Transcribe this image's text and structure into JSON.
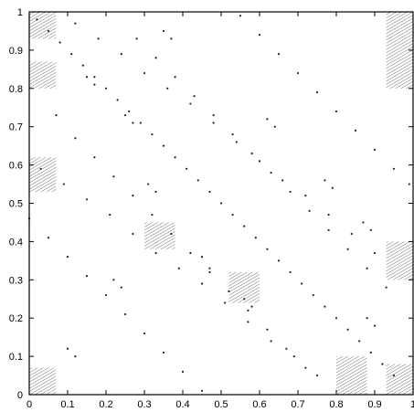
{
  "chart_data": {
    "type": "scatter",
    "title": "",
    "xlabel": "",
    "ylabel": "",
    "xlim": [
      0,
      1
    ],
    "ylim": [
      0,
      1
    ],
    "grid": false,
    "legend": "none",
    "x_ticks": [
      "0",
      "0.1",
      "0.2",
      "0.3",
      "0.4",
      "0.5",
      "0.6",
      "0.7",
      "0.8",
      "0.9",
      "1"
    ],
    "y_ticks": [
      "0",
      "0.1",
      "0.2",
      "0.3",
      "0.4",
      "0.5",
      "0.6",
      "0.7",
      "0.8",
      "0.9",
      "1"
    ],
    "series": [
      {
        "color": "#222222",
        "points": [
          [
            0.02,
            0.98
          ],
          [
            0.05,
            0.95
          ],
          [
            0.08,
            0.92
          ],
          [
            0.11,
            0.89
          ],
          [
            0.14,
            0.86
          ],
          [
            0.17,
            0.83
          ],
          [
            0.2,
            0.8
          ],
          [
            0.23,
            0.77
          ],
          [
            0.26,
            0.74
          ],
          [
            0.29,
            0.71
          ],
          [
            0.32,
            0.68
          ],
          [
            0.35,
            0.65
          ],
          [
            0.38,
            0.62
          ],
          [
            0.41,
            0.59
          ],
          [
            0.44,
            0.56
          ],
          [
            0.47,
            0.53
          ],
          [
            0.5,
            0.5
          ],
          [
            0.53,
            0.47
          ],
          [
            0.56,
            0.44
          ],
          [
            0.59,
            0.41
          ],
          [
            0.62,
            0.38
          ],
          [
            0.65,
            0.35
          ],
          [
            0.68,
            0.32
          ],
          [
            0.71,
            0.29
          ],
          [
            0.74,
            0.26
          ],
          [
            0.77,
            0.23
          ],
          [
            0.8,
            0.2
          ],
          [
            0.83,
            0.17
          ],
          [
            0.86,
            0.14
          ],
          [
            0.89,
            0.11
          ],
          [
            0.92,
            0.08
          ],
          [
            0.95,
            0.05
          ],
          [
            0.07,
            0.73
          ],
          [
            0.12,
            0.67
          ],
          [
            0.17,
            0.62
          ],
          [
            0.22,
            0.57
          ],
          [
            0.27,
            0.52
          ],
          [
            0.32,
            0.47
          ],
          [
            0.37,
            0.42
          ],
          [
            0.42,
            0.37
          ],
          [
            0.47,
            0.32
          ],
          [
            0.52,
            0.27
          ],
          [
            0.57,
            0.22
          ],
          [
            0.62,
            0.17
          ],
          [
            0.67,
            0.12
          ],
          [
            0.72,
            0.07
          ],
          [
            0.28,
            0.93
          ],
          [
            0.33,
            0.88
          ],
          [
            0.38,
            0.83
          ],
          [
            0.43,
            0.78
          ],
          [
            0.48,
            0.73
          ],
          [
            0.53,
            0.68
          ],
          [
            0.58,
            0.63
          ],
          [
            0.63,
            0.58
          ],
          [
            0.68,
            0.53
          ],
          [
            0.73,
            0.48
          ],
          [
            0.78,
            0.43
          ],
          [
            0.83,
            0.38
          ],
          [
            0.88,
            0.33
          ],
          [
            0.93,
            0.28
          ],
          [
            0.0,
            0.46
          ],
          [
            0.05,
            0.41
          ],
          [
            0.1,
            0.36
          ],
          [
            0.15,
            0.31
          ],
          [
            0.2,
            0.26
          ],
          [
            0.25,
            0.21
          ],
          [
            0.3,
            0.16
          ],
          [
            0.35,
            0.11
          ],
          [
            0.4,
            0.06
          ],
          [
            0.45,
            0.01
          ],
          [
            0.55,
            0.99
          ],
          [
            0.6,
            0.94
          ],
          [
            0.65,
            0.89
          ],
          [
            0.7,
            0.84
          ],
          [
            0.75,
            0.79
          ],
          [
            0.8,
            0.74
          ],
          [
            0.85,
            0.69
          ],
          [
            0.9,
            0.64
          ],
          [
            0.95,
            0.59
          ],
          [
            0.99,
            0.55
          ],
          [
            0.12,
            0.97
          ],
          [
            0.18,
            0.93
          ],
          [
            0.24,
            0.89
          ],
          [
            0.3,
            0.84
          ],
          [
            0.36,
            0.8
          ],
          [
            0.42,
            0.76
          ],
          [
            0.48,
            0.71
          ],
          [
            0.54,
            0.66
          ],
          [
            0.6,
            0.61
          ],
          [
            0.66,
            0.56
          ],
          [
            0.72,
            0.52
          ],
          [
            0.78,
            0.47
          ],
          [
            0.84,
            0.42
          ],
          [
            0.9,
            0.37
          ],
          [
            0.03,
            0.59
          ],
          [
            0.09,
            0.55
          ],
          [
            0.15,
            0.51
          ],
          [
            0.21,
            0.47
          ],
          [
            0.27,
            0.42
          ],
          [
            0.33,
            0.37
          ],
          [
            0.39,
            0.33
          ],
          [
            0.45,
            0.29
          ],
          [
            0.51,
            0.24
          ],
          [
            0.57,
            0.19
          ],
          [
            0.63,
            0.14
          ],
          [
            0.69,
            0.1
          ],
          [
            0.75,
            0.05
          ],
          [
            0.22,
            0.3
          ],
          [
            0.24,
            0.28
          ],
          [
            0.31,
            0.55
          ],
          [
            0.33,
            0.53
          ],
          [
            0.45,
            0.36
          ],
          [
            0.47,
            0.33
          ],
          [
            0.56,
            0.25
          ],
          [
            0.58,
            0.23
          ],
          [
            0.62,
            0.72
          ],
          [
            0.64,
            0.7
          ],
          [
            0.77,
            0.56
          ],
          [
            0.79,
            0.54
          ],
          [
            0.15,
            0.83
          ],
          [
            0.17,
            0.81
          ],
          [
            0.87,
            0.45
          ],
          [
            0.89,
            0.43
          ],
          [
            0.1,
            0.12
          ],
          [
            0.12,
            0.1
          ],
          [
            0.9,
            0.18
          ],
          [
            0.88,
            0.2
          ],
          [
            0.35,
            0.95
          ],
          [
            0.37,
            0.93
          ],
          [
            0.25,
            0.73
          ],
          [
            0.27,
            0.71
          ]
        ]
      }
    ],
    "shaded_regions": [
      {
        "x": [
          0.0,
          0.07
        ],
        "y": [
          0.93,
          1.0
        ]
      },
      {
        "x": [
          0.0,
          0.07
        ],
        "y": [
          0.0,
          0.07
        ]
      },
      {
        "x": [
          0.8,
          0.88
        ],
        "y": [
          0.0,
          0.1
        ]
      },
      {
        "x": [
          0.93,
          1.0
        ],
        "y": [
          0.8,
          1.0
        ]
      },
      {
        "x": [
          0.0,
          0.07
        ],
        "y": [
          0.8,
          0.87
        ]
      },
      {
        "x": [
          0.0,
          0.07
        ],
        "y": [
          0.53,
          0.62
        ]
      },
      {
        "x": [
          0.93,
          1.0
        ],
        "y": [
          0.3,
          0.4
        ]
      },
      {
        "x": [
          0.93,
          1.0
        ],
        "y": [
          0.0,
          0.08
        ]
      },
      {
        "x": [
          0.52,
          0.6
        ],
        "y": [
          0.24,
          0.32
        ]
      },
      {
        "x": [
          0.3,
          0.38
        ],
        "y": [
          0.38,
          0.45
        ]
      }
    ]
  }
}
